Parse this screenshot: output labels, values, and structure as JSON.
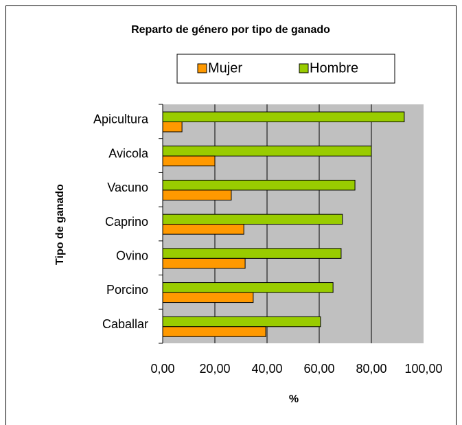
{
  "chart_data": {
    "type": "hbar",
    "title": "Reparto de género por tipo de ganado",
    "x_label": "%",
    "y_label": "Tipo de ganado",
    "categories": [
      "Apicultura",
      "Avicola",
      "Vacuno",
      "Caprino",
      "Ovino",
      "Porcino",
      "Caballar"
    ],
    "series": [
      {
        "name": "Mujer",
        "color": "#ff9900",
        "values": [
          7.4,
          20.0,
          26.3,
          31.1,
          31.6,
          34.7,
          39.5
        ]
      },
      {
        "name": "Hombre",
        "color": "#99cc00",
        "values": [
          92.6,
          80.0,
          73.7,
          68.9,
          68.4,
          65.3,
          60.5
        ]
      }
    ],
    "xlim": [
      0,
      100
    ],
    "xticks": [
      {
        "value": 0,
        "label": "0,00"
      },
      {
        "value": 20,
        "label": "20,00"
      },
      {
        "value": 40,
        "label": "40,00"
      },
      {
        "value": 60,
        "label": "60,00"
      },
      {
        "value": 80,
        "label": "80,00"
      },
      {
        "value": 100,
        "label": "100,00"
      }
    ],
    "grid": true,
    "legend": "top"
  }
}
